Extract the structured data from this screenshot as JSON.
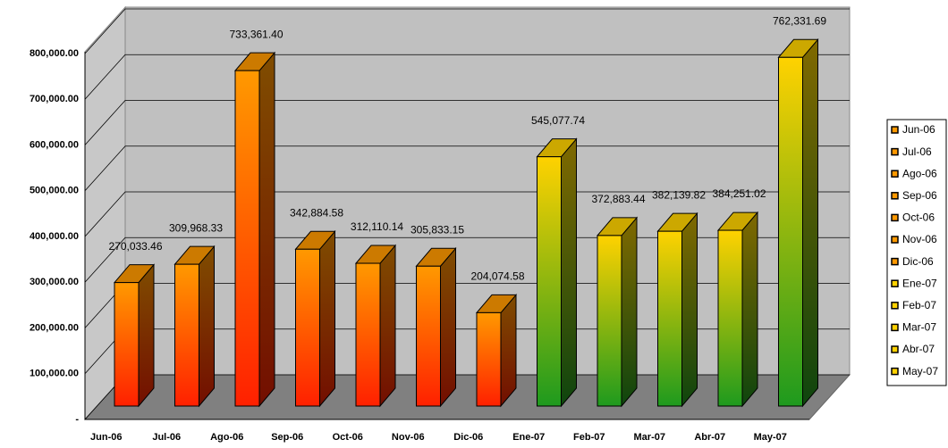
{
  "chart_data": {
    "type": "bar3d",
    "categories": [
      "Jun-06",
      "Jul-06",
      "Ago-06",
      "Sep-06",
      "Oct-06",
      "Nov-06",
      "Dic-06",
      "Ene-07",
      "Feb-07",
      "Mar-07",
      "Abr-07",
      "May-07"
    ],
    "values": [
      270033.46,
      309968.33,
      733361.4,
      342884.58,
      312110.14,
      305833.15,
      204074.58,
      545077.74,
      372883.44,
      382139.82,
      384251.02,
      762331.69
    ],
    "value_labels": [
      "270,033.46",
      "309,968.33",
      "733,361.40",
      "342,884.58",
      "312,110.14",
      "305,833.15",
      "204,074.58",
      "545,077.74",
      "372,883.44",
      "382,139.82",
      "384,251.02",
      "762,331.69"
    ],
    "colors": [
      "#ff9900",
      "#ff9900",
      "#ff9900",
      "#ff9900",
      "#ff9900",
      "#ff9900",
      "#ff9900",
      "#ffd200",
      "#ffd200",
      "#ffd200",
      "#ffd200",
      "#ffd200"
    ],
    "base_colors": [
      "#ff2000",
      "#ff2000",
      "#ff2000",
      "#ff2000",
      "#ff2000",
      "#ff2000",
      "#ff2000",
      "#1e9a1e",
      "#1e9a1e",
      "#1e9a1e",
      "#1e9a1e",
      "#1e9a1e"
    ],
    "ylim": [
      0,
      800000
    ],
    "yticks": [
      {
        "value": 0,
        "label": "-"
      },
      {
        "value": 100000,
        "label": "100,000.00"
      },
      {
        "value": 200000,
        "label": "200,000.00"
      },
      {
        "value": 300000,
        "label": "300,000.00"
      },
      {
        "value": 400000,
        "label": "400,000.00"
      },
      {
        "value": 500000,
        "label": "500,000.00"
      },
      {
        "value": 600000,
        "label": "600,000.00"
      },
      {
        "value": 700000,
        "label": "700,000.00"
      },
      {
        "value": 800000,
        "label": "800,000.00"
      }
    ],
    "grid": true,
    "legend": "right"
  }
}
